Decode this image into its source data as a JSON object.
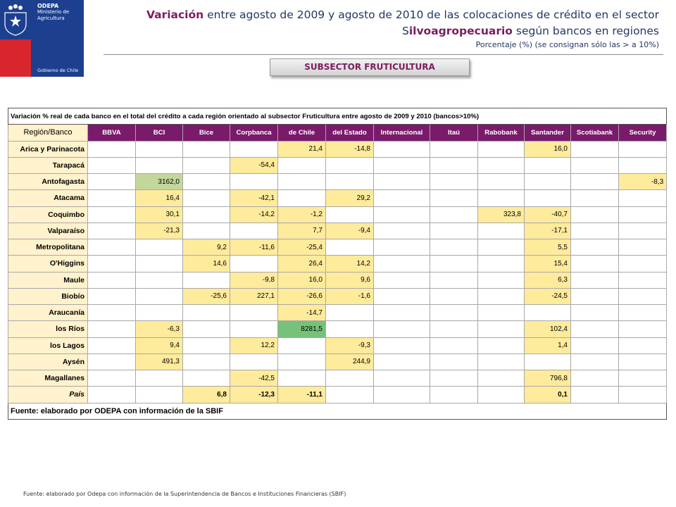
{
  "logo": {
    "org_name": "ODEPA",
    "ministry": "Ministerio de",
    "ministry2": "Agricultura",
    "government": "Gobierno de Chile"
  },
  "title": {
    "part1": "Variación",
    "part2": " entre agosto de 2009 y agosto de 2010 de las colocaciones de crédito en el sector",
    "part3": "S",
    "part4": "ilvoagropecuario",
    "part5": " según bancos en regiones",
    "subtitle": "Porcentaje (%)  (se consignan sólo las > a 10%)"
  },
  "subsector_label": "SUBSECTOR FRUTICULTURA",
  "table": {
    "caption": "Variación % real de cada banco en el total del crédito a cada región orientado al subsector Fruticultura entre agosto de 2009 y 2010 (bancos>10%)",
    "corner": "Región/Banco",
    "banks": [
      "BBVA",
      "BCI",
      "Bice",
      "Corpbanca",
      "de Chile",
      "del Estado",
      "Internacional",
      "Itaú",
      "Rabobank",
      "Santander",
      "Scotiabank",
      "Security"
    ],
    "rows": [
      {
        "region": "Arica y Parinacota",
        "values": [
          "",
          "",
          "",
          "",
          "21,4",
          "-14,8",
          "",
          "",
          "",
          "16,0",
          "",
          ""
        ]
      },
      {
        "region": "Tarapacá",
        "values": [
          "",
          "",
          "",
          "-54,4",
          "",
          "",
          "",
          "",
          "",
          "",
          "",
          ""
        ]
      },
      {
        "region": "Antofagasta",
        "values": [
          "",
          "3162,0",
          "",
          "",
          "",
          "",
          "",
          "",
          "",
          "",
          "",
          "-8,3"
        ]
      },
      {
        "region": "Atacama",
        "values": [
          "",
          "16,4",
          "",
          "-42,1",
          "",
          "29,2",
          "",
          "",
          "",
          "",
          "",
          ""
        ]
      },
      {
        "region": "Coquimbo",
        "values": [
          "",
          "30,1",
          "",
          "-14,2",
          "-1,2",
          "",
          "",
          "",
          "323,8",
          "-40,7",
          "",
          ""
        ]
      },
      {
        "region": "Valparaíso",
        "values": [
          "",
          "-21,3",
          "",
          "",
          "7,7",
          "-9,4",
          "",
          "",
          "",
          "-17,1",
          "",
          ""
        ]
      },
      {
        "region": "Metropolitana",
        "values": [
          "",
          "",
          "9,2",
          "-11,6",
          "-25,4",
          "",
          "",
          "",
          "",
          "5,5",
          "",
          ""
        ]
      },
      {
        "region": "O'Higgins",
        "values": [
          "",
          "",
          "14,6",
          "",
          "26,4",
          "14,2",
          "",
          "",
          "",
          "15,4",
          "",
          ""
        ]
      },
      {
        "region": "Maule",
        "values": [
          "",
          "",
          "",
          "-9,8",
          "16,0",
          "9,6",
          "",
          "",
          "",
          "6,3",
          "",
          ""
        ]
      },
      {
        "region": "Biobío",
        "values": [
          "",
          "",
          "-25,6",
          "227,1",
          "-26,6",
          "-1,6",
          "",
          "",
          "",
          "-24,5",
          "",
          ""
        ]
      },
      {
        "region": "Araucanía",
        "values": [
          "",
          "",
          "",
          "",
          "-14,7",
          "",
          "",
          "",
          "",
          "",
          "",
          ""
        ]
      },
      {
        "region": "los Ríos",
        "values": [
          "",
          "-6,3",
          "",
          "",
          "8281,5",
          "",
          "",
          "",
          "",
          "102,4",
          "",
          ""
        ]
      },
      {
        "region": "los Lagos",
        "values": [
          "",
          "9,4",
          "",
          "12,2",
          "",
          "-9,3",
          "",
          "",
          "",
          "1,4",
          "",
          ""
        ]
      },
      {
        "region": "Aysén",
        "values": [
          "",
          "491,3",
          "",
          "",
          "",
          "244,9",
          "",
          "",
          "",
          "",
          "",
          ""
        ]
      },
      {
        "region": "Magallanes",
        "values": [
          "",
          "",
          "",
          "-42,5",
          "",
          "",
          "",
          "",
          "",
          "796,8",
          "",
          ""
        ]
      },
      {
        "region": "País",
        "values": [
          "",
          "",
          "6,8",
          "-12,3",
          "-11,1",
          "",
          "",
          "",
          "",
          "0,1",
          "",
          ""
        ]
      }
    ],
    "footer": "Fuente: elaborado por ODEPA con información de la SBIF"
  },
  "source_note": "Fuente: elaborado por Odepa con información de la Superintendencia de Bancos e Instituciones Financieras (SBIF)"
}
